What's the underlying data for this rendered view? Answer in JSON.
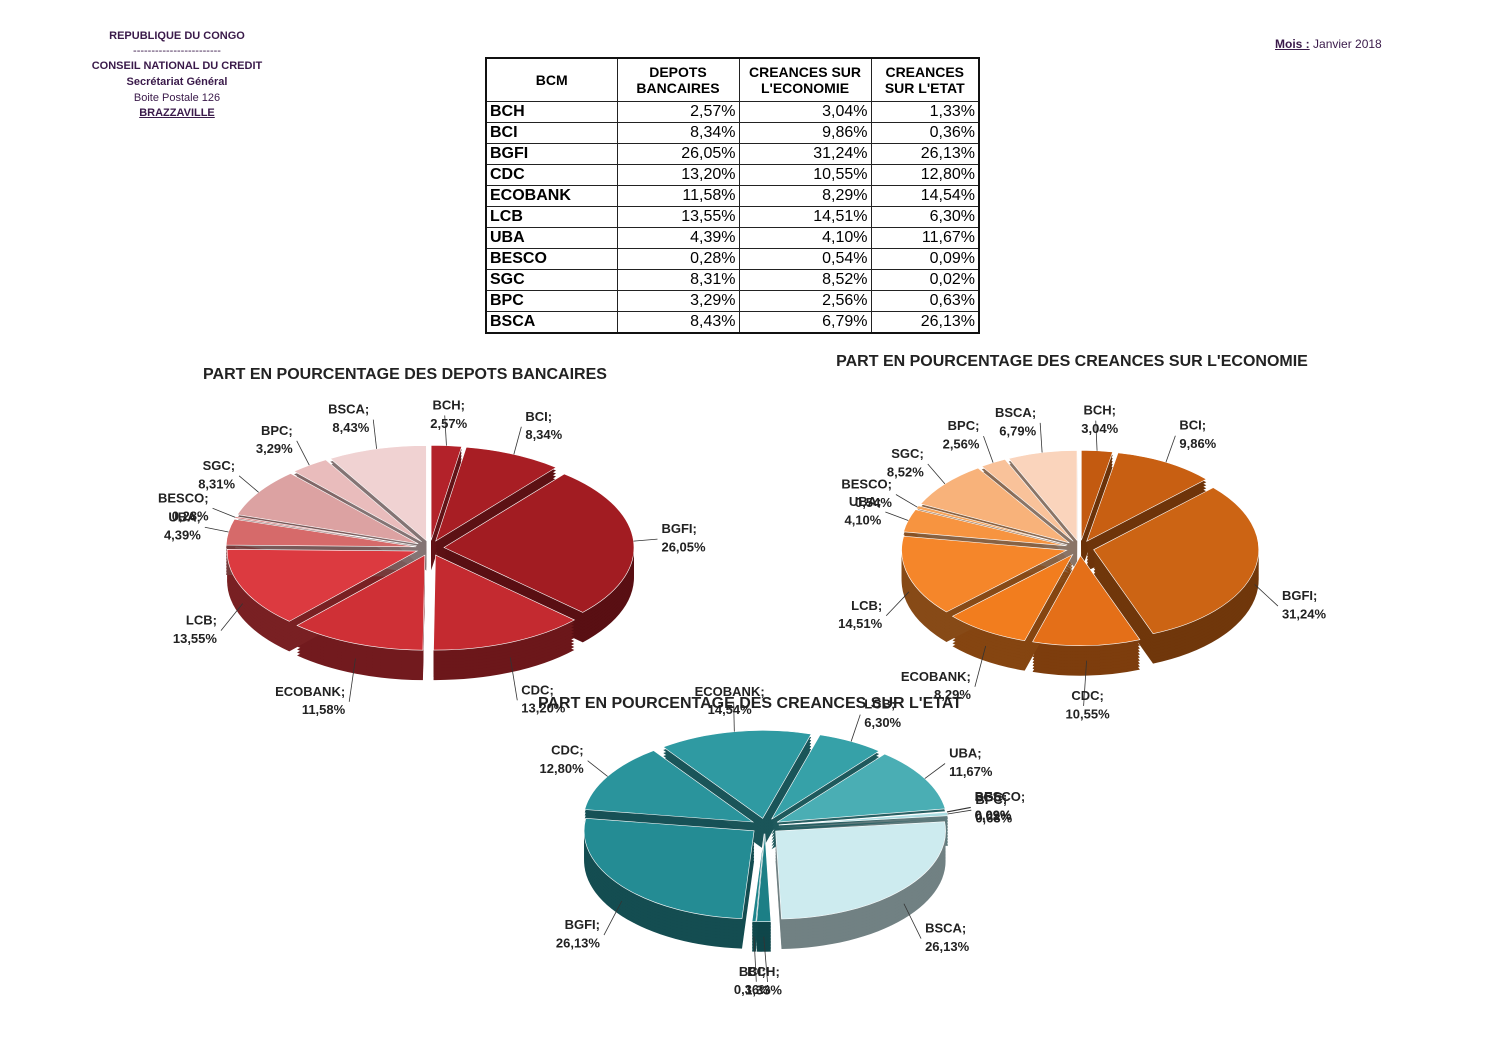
{
  "header": {
    "country": "REPUBLIQUE DU CONGO",
    "separator": "------------------------",
    "organization": "CONSEIL NATIONAL DU CREDIT",
    "department": "Secrétariat Général",
    "address": "Boite Postale 126",
    "city": "BRAZZAVILLE"
  },
  "period": {
    "label": "Mois :",
    "value": "Janvier 2018"
  },
  "table": {
    "headers": [
      "BCM",
      "DEPOTS BANCAIRES",
      "CREANCES SUR L'ECONOMIE",
      "CREANCES SUR L'ETAT"
    ],
    "rows": [
      [
        "BCH",
        "2,57%",
        "3,04%",
        "1,33%"
      ],
      [
        "BCI",
        "8,34%",
        "9,86%",
        "0,36%"
      ],
      [
        "BGFI",
        "26,05%",
        "31,24%",
        "26,13%"
      ],
      [
        "CDC",
        "13,20%",
        "10,55%",
        "12,80%"
      ],
      [
        "ECOBANK",
        "11,58%",
        "8,29%",
        "14,54%"
      ],
      [
        "LCB",
        "13,55%",
        "14,51%",
        "6,30%"
      ],
      [
        "UBA",
        "4,39%",
        "4,10%",
        "11,67%"
      ],
      [
        "BESCO",
        "0,28%",
        "0,54%",
        "0,09%"
      ],
      [
        "SGC",
        "8,31%",
        "8,52%",
        "0,02%"
      ],
      [
        "BPC",
        "3,29%",
        "2,56%",
        "0,63%"
      ],
      [
        "BSCA",
        "8,43%",
        "6,79%",
        "26,13%"
      ]
    ]
  },
  "chart_data": [
    {
      "type": "pie",
      "title": "PART EN POURCENTAGE DES DEPOTS BANCAIRES",
      "label_separator": ";",
      "categories": [
        "BCH",
        "BCI",
        "BGFI",
        "CDC",
        "ECOBANK",
        "LCB",
        "UBA",
        "BESCO",
        "SGC",
        "BPC",
        "BSCA"
      ],
      "values": [
        2.57,
        8.34,
        26.05,
        13.2,
        11.58,
        13.55,
        4.39,
        0.28,
        8.31,
        3.29,
        8.43
      ],
      "value_labels": [
        "2,57%",
        "8,34%",
        "26,05%",
        "13,20%",
        "11,58%",
        "13,55%",
        "4,39%",
        "0,28%",
        "8,31%",
        "3,29%",
        "8,43%"
      ],
      "colors": [
        "#b3222a",
        "#a81e24",
        "#a21c22",
        "#c42a30",
        "#cf3036",
        "#dc3a40",
        "#d66a6a",
        "#e08c8c",
        "#dca2a2",
        "#e9bcbc",
        "#f0d2d2"
      ]
    },
    {
      "type": "pie",
      "title": "PART EN POURCENTAGE DES CREANCES SUR L'ECONOMIE",
      "label_separator": ";",
      "categories": [
        "BCH",
        "BCI",
        "BGFI",
        "CDC",
        "ECOBANK",
        "LCB",
        "UBA",
        "BESCO",
        "SGC",
        "BPC",
        "BSCA"
      ],
      "values": [
        3.04,
        9.86,
        31.24,
        10.55,
        8.29,
        14.51,
        4.1,
        0.54,
        8.52,
        2.56,
        6.79
      ],
      "value_labels": [
        "3,04%",
        "9,86%",
        "31,24%",
        "10,55%",
        "8,29%",
        "14,51%",
        "4,10%",
        "0,54%",
        "8,52%",
        "2,56%",
        "6,79%"
      ],
      "colors": [
        "#c35a10",
        "#c85f12",
        "#cc6414",
        "#e46f18",
        "#f27d1e",
        "#f5862a",
        "#f79440",
        "#f7a45a",
        "#f8b27a",
        "#f9c29a",
        "#fad4bc"
      ]
    },
    {
      "type": "pie",
      "title": "PART EN POURCENTAGE DES CREANCES SUR L'ETAT",
      "label_separator": ";",
      "categories": [
        "BCH",
        "BCI",
        "BGFI",
        "CDC",
        "ECOBANK",
        "LCB",
        "UBA",
        "BESCO",
        "SGC",
        "BPC",
        "BSCA"
      ],
      "values": [
        1.33,
        0.36,
        26.13,
        12.8,
        14.54,
        6.3,
        11.67,
        0.09,
        0.02,
        0.63,
        26.13
      ],
      "value_labels": [
        "1,33%",
        "0,36%",
        "26,13%",
        "12,80%",
        "14,54%",
        "6,30%",
        "11,67%",
        "0,09%",
        "0,02%",
        "0,63%",
        "26,13%"
      ],
      "colors": [
        "#1c7f86",
        "#1f858c",
        "#248c94",
        "#2a949c",
        "#2f9aa2",
        "#36a1a8",
        "#4aaeb4",
        "#6bbec4",
        "#8ecfd4",
        "#acdde2",
        "#cdebef"
      ]
    }
  ]
}
